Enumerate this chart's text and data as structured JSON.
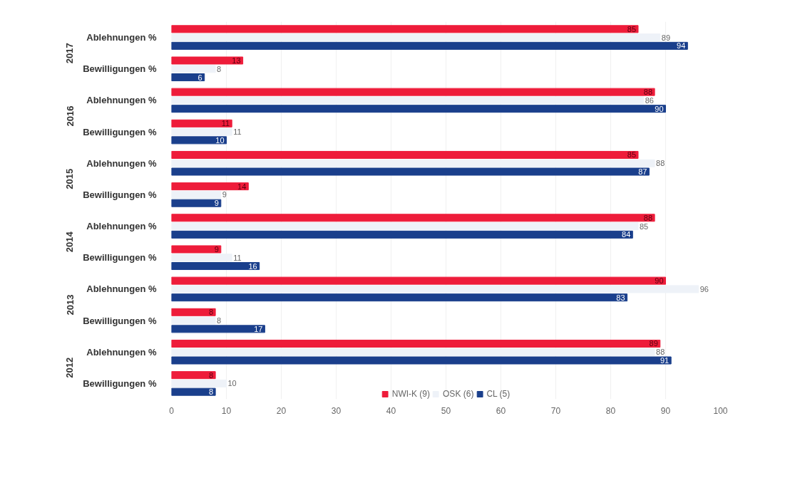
{
  "chart_data": {
    "type": "bar",
    "orientation": "horizontal",
    "categories": [
      "Ablehnungen %",
      "Bewilligungen %",
      "Ablehnungen %",
      "Bewilligungen %",
      "Ablehnungen %",
      "Bewilligungen %",
      "Ablehnungen %",
      "Bewilligungen %",
      "Ablehnungen %",
      "Bewilligungen %",
      "Ablehnungen %",
      "Bewilligungen %"
    ],
    "annotations": [
      "2017",
      "2016",
      "2015",
      "2014",
      "2013",
      "2012"
    ],
    "series": [
      {
        "name": "NWI-K (9)",
        "color": "#ee1c3a",
        "values": [
          85,
          13,
          88,
          11,
          85,
          14,
          88,
          9,
          90,
          8,
          89,
          8
        ]
      },
      {
        "name": "OSK (6)",
        "color": "#eef2f8",
        "values": [
          89,
          8,
          86,
          11,
          88,
          9,
          85,
          11,
          96,
          8,
          88,
          10
        ]
      },
      {
        "name": "CL (5)",
        "color": "#1a3f8c",
        "values": [
          94,
          6,
          90,
          10,
          87,
          9,
          84,
          16,
          83,
          17,
          91,
          8
        ]
      }
    ],
    "xlim": [
      0,
      100
    ],
    "xticks": [
      0,
      10,
      20,
      30,
      40,
      50,
      60,
      70,
      80,
      90,
      100
    ],
    "data_labels": true,
    "grid": "x",
    "legend": "bottom"
  }
}
